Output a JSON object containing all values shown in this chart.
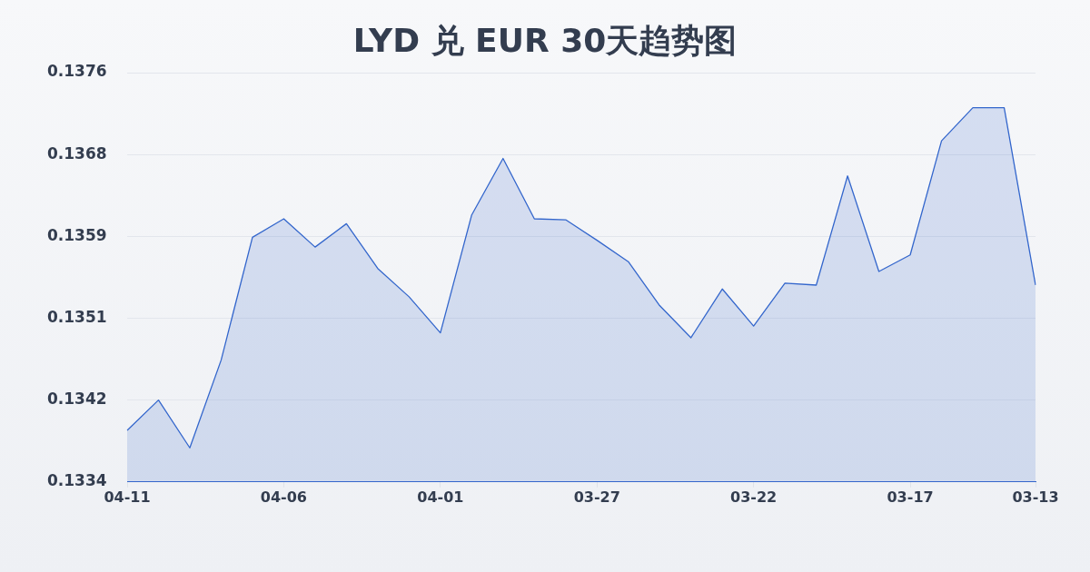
{
  "chart_data": {
    "type": "area",
    "title": "LYD 兑 EUR 30天趋势图",
    "categories": [
      "04-11",
      null,
      null,
      null,
      null,
      "04-06",
      null,
      null,
      null,
      null,
      "04-01",
      null,
      null,
      null,
      null,
      "03-27",
      null,
      null,
      null,
      null,
      "03-22",
      null,
      null,
      null,
      null,
      "03-17",
      null,
      null,
      null,
      "03-13"
    ],
    "values": [
      0.13393,
      0.13424,
      0.13375,
      0.13465,
      0.13591,
      0.1361,
      0.13581,
      0.13605,
      0.13559,
      0.1353,
      0.13493,
      0.13614,
      0.13672,
      0.1361,
      0.13609,
      0.13588,
      0.13566,
      0.13521,
      0.13488,
      0.13538,
      0.135,
      0.13544,
      0.13542,
      0.13654,
      0.13556,
      0.13573,
      0.1369,
      0.13724,
      0.13724,
      0.13542
    ],
    "color": "#3366cc",
    "ylim": [
      0.1334,
      0.1376
    ],
    "yticks": [
      0.1334,
      {
        "value": 0.13424,
        "label": "0.1342"
      },
      {
        "value": 0.13508,
        "label": "0.1351"
      },
      {
        "value": 0.13592,
        "label": "0.1359"
      },
      {
        "value": 0.13676,
        "label": "0.1368"
      },
      0.1376
    ],
    "grid": "y",
    "legend": false,
    "marker": "none",
    "line_style": "solid"
  }
}
